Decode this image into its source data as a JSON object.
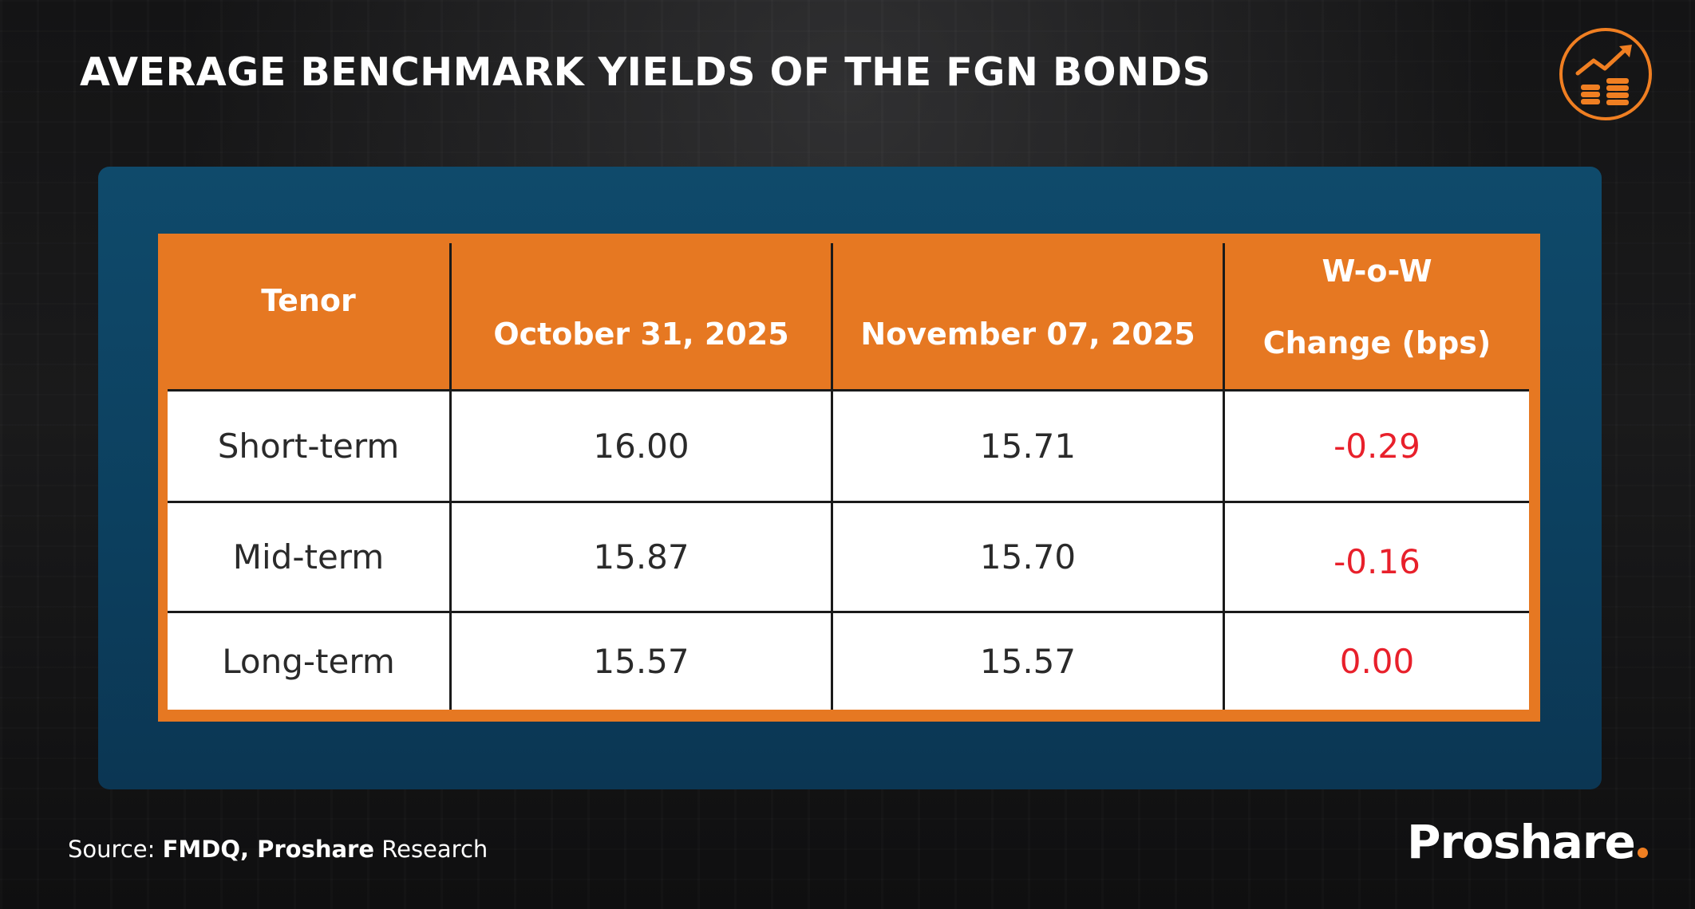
{
  "title": "AVERAGE BENCHMARK YIELDS OF THE FGN BONDS",
  "logo_icon": "coins-growth-arrow-icon",
  "colors": {
    "accent": "#e67822",
    "panel": "#0c3f5e",
    "negative": "#e8202b",
    "background": "#111112"
  },
  "chart_data": {
    "type": "table",
    "columns": [
      "Tenor",
      "October 31, 2025",
      "November 07, 2025",
      "W-o-W",
      "Change (bps)"
    ],
    "header": {
      "tenor": "Tenor",
      "col1": "October 31, 2025",
      "col2": "November 07, 2025",
      "col3_line1": "W-o-W",
      "col3_line2": "Change (bps)"
    },
    "rows": [
      {
        "tenor": "Short-term",
        "oct31": "16.00",
        "nov07": "15.71",
        "change": "-0.29"
      },
      {
        "tenor": "Mid-term",
        "oct31": "15.87",
        "nov07": "15.70",
        "change": "-0.16"
      },
      {
        "tenor": "Long-term",
        "oct31": "15.57",
        "nov07": "15.57",
        "change": "0.00"
      }
    ]
  },
  "footer": {
    "source_prefix": "Source: ",
    "source_bold": "FMDQ, Proshare",
    "source_suffix": " Research",
    "brand": "Proshare"
  }
}
